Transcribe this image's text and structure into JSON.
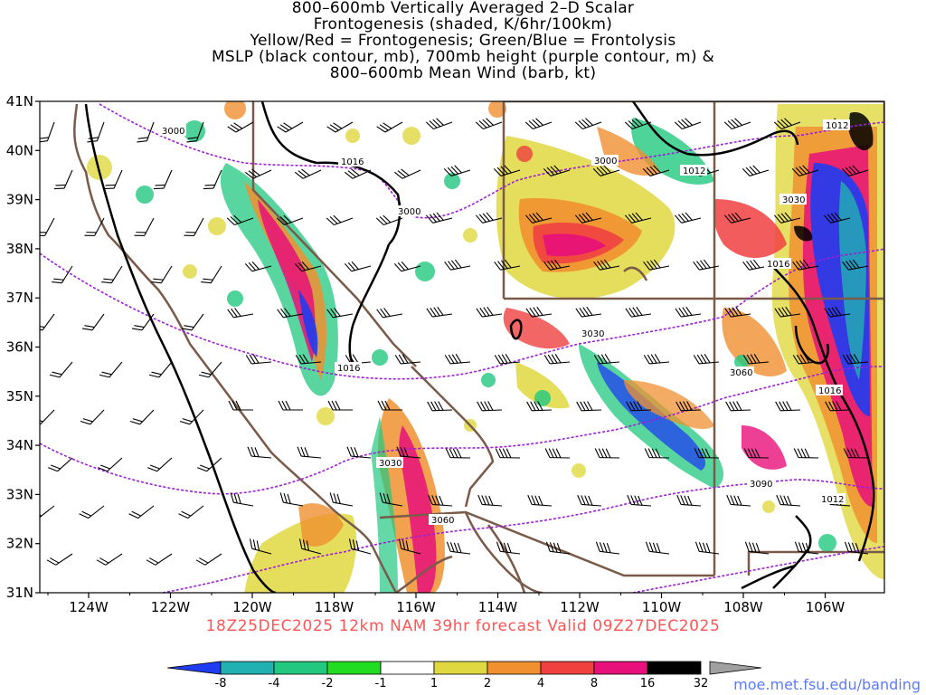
{
  "title": {
    "line1": "800–600mb Vertically Averaged 2–D Scalar",
    "line2": "Frontogenesis (shaded, K/6hr/100km)",
    "line3": "Yellow/Red = Frontogenesis;  Green/Blue = Frontolysis",
    "line4": "MSLP (black contour, mb), 700mb height (purple contour, m) &",
    "line5": "800–600mb Mean Wind (barb, kt)"
  },
  "run_info": "18Z25DEC2025 12km NAM 39hr forecast Valid 09Z27DEC2025",
  "credit": "moe.met.fsu.edu/banding",
  "map": {
    "lat_labels": [
      "41N",
      "40N",
      "39N",
      "38N",
      "37N",
      "36N",
      "35N",
      "34N",
      "33N",
      "32N",
      "31N"
    ],
    "lon_labels": [
      "124W",
      "122W",
      "120W",
      "118W",
      "116W",
      "114W",
      "112W",
      "110W",
      "108W",
      "106W"
    ],
    "mslp_labels": [
      "1016",
      "1012",
      "1016",
      "1016",
      "1012",
      "1016",
      "1012"
    ],
    "height_labels": [
      "3000",
      "3000",
      "3000",
      "3030",
      "3030",
      "3060",
      "3060",
      "3030",
      "3090"
    ],
    "colors": {
      "mslp": "#000000",
      "height": "#9b1fd6",
      "border": "#7a5a48",
      "frontolysis_strong": "#2a2ae8",
      "frontogenesis_strong": "#e8007a"
    }
  },
  "colorbar": {
    "labels": [
      "-8",
      "-4",
      "-2",
      "-1",
      "1",
      "2",
      "4",
      "8",
      "16",
      "32"
    ],
    "colors": [
      "#1f3cf0",
      "#22b0b0",
      "#22c880",
      "#22dc22",
      "#ffffff",
      "#e0d840",
      "#f09030",
      "#f04040",
      "#e8107a",
      "#000000",
      "#a0a0a0"
    ]
  }
}
